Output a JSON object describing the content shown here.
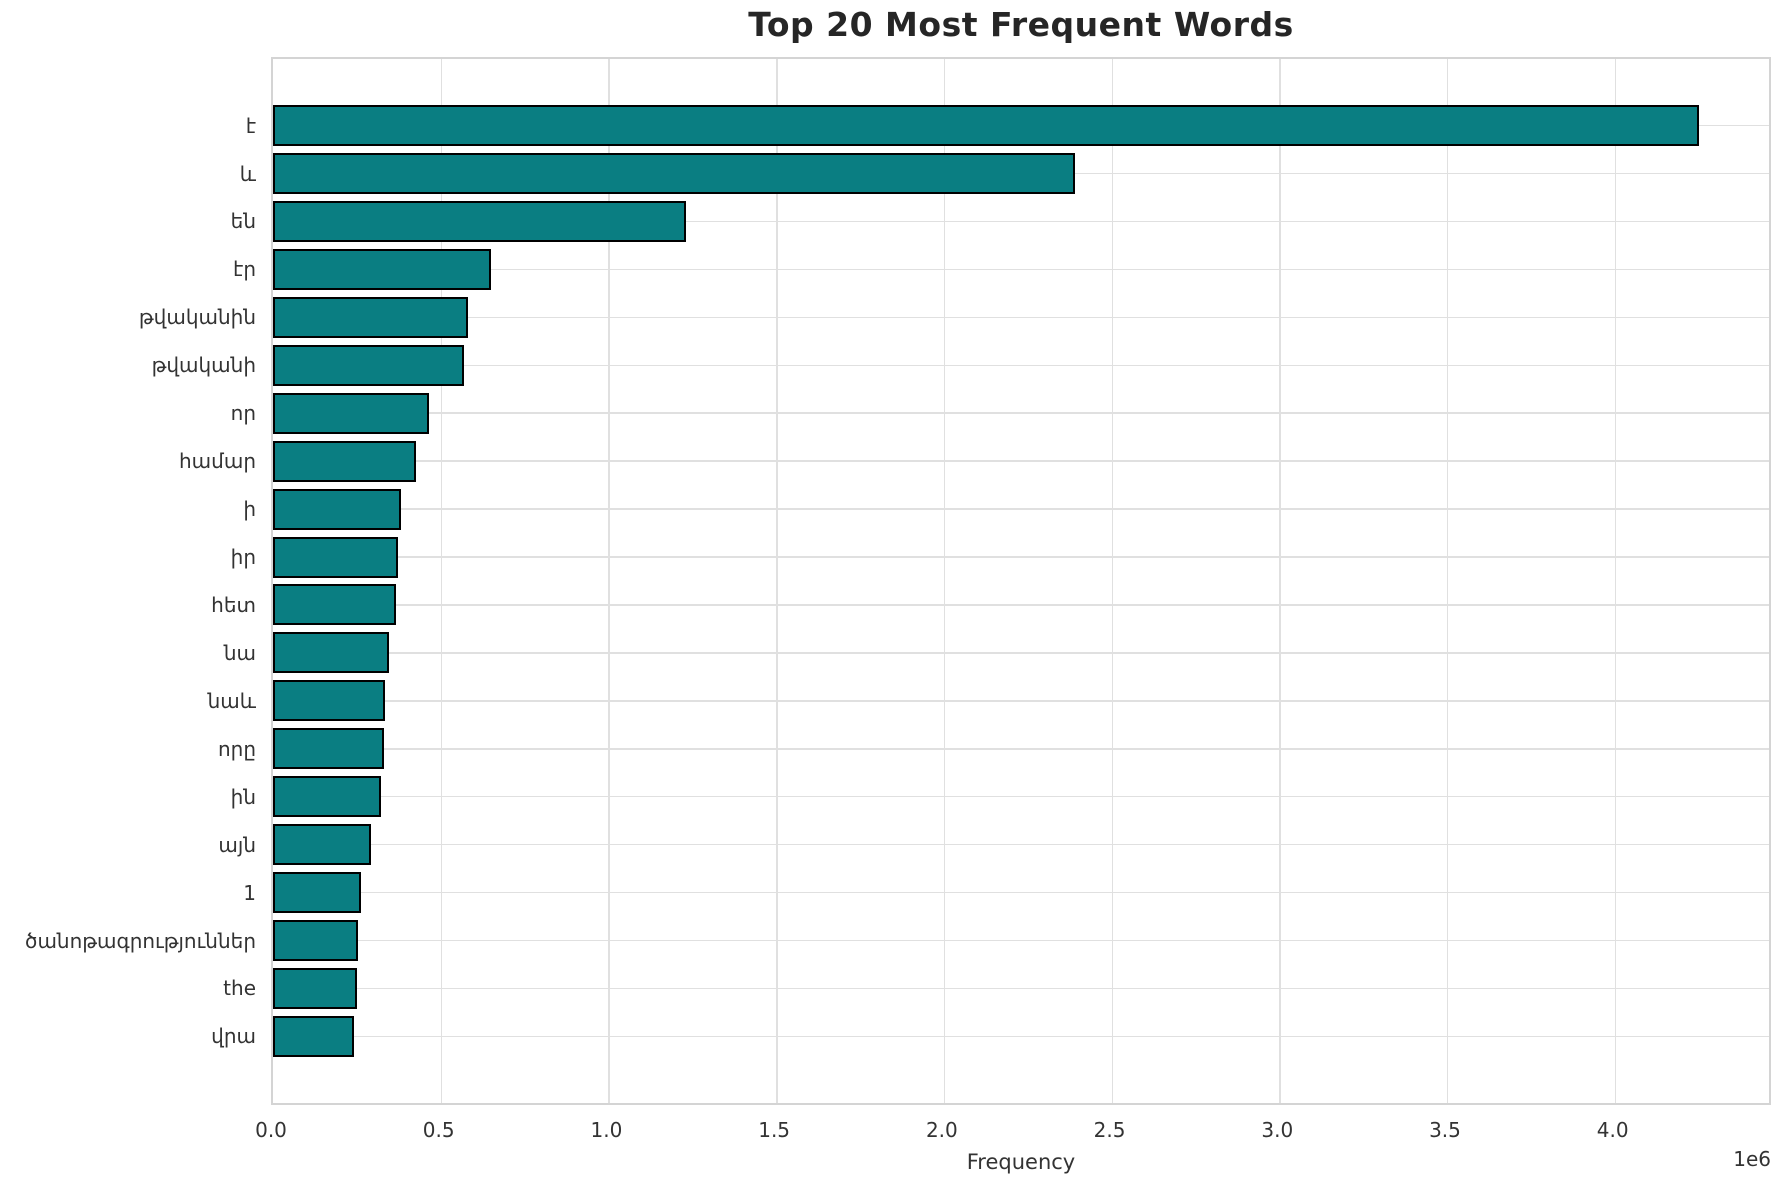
{
  "chart_data": {
    "type": "bar",
    "orientation": "horizontal",
    "title": "Top 20 Most Frequent Words",
    "xlabel": "Frequency",
    "ylabel": "",
    "x_scale_note": "1e6",
    "grid": true,
    "legend": false,
    "bar_color": "#0a7e82",
    "bar_edge_color": "#000000",
    "xlim": [
      0,
      4460000
    ],
    "x_ticks": [
      0,
      500000,
      1000000,
      1500000,
      2000000,
      2500000,
      3000000,
      3500000,
      4000000
    ],
    "x_tick_labels": [
      "0.0",
      "0.5",
      "1.0",
      "1.5",
      "2.0",
      "2.5",
      "3.0",
      "3.5",
      "4.0"
    ],
    "categories": [
      "է",
      "և",
      "են",
      "էր",
      "թվականին",
      "թվականի",
      "որ",
      "համար",
      "ի",
      "իր",
      "հետ",
      "նա",
      "նաև",
      "որը",
      "ին",
      "այն",
      "1",
      "ծանոթագրություններ",
      "the",
      "վրա"
    ],
    "values": [
      4250000,
      2390000,
      1230000,
      650000,
      580000,
      568000,
      465000,
      425000,
      381000,
      372000,
      366000,
      345000,
      334000,
      332000,
      321000,
      292000,
      262000,
      253000,
      251000,
      241000
    ]
  }
}
